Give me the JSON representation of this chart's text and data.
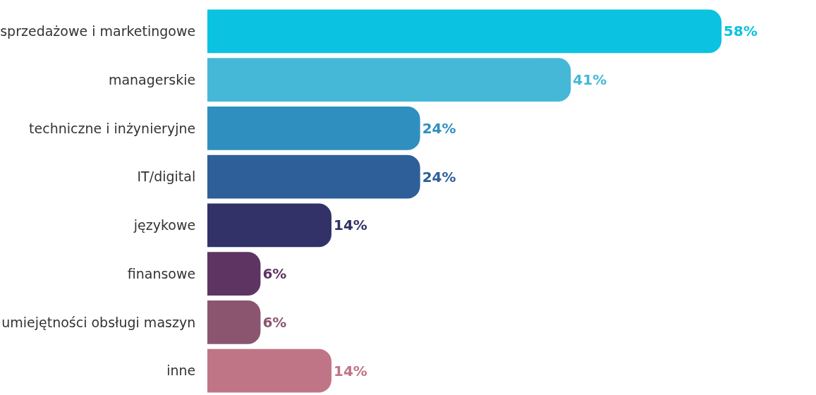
{
  "chart_data": {
    "type": "bar",
    "orientation": "horizontal",
    "categories": [
      "sprzedażowe i marketingowe",
      "managerskie",
      "techniczne i inżynieryjne",
      "IT/digital",
      "językowe",
      "finansowe",
      "umiejętności obsługi maszyn",
      "inne"
    ],
    "values": [
      58,
      41,
      24,
      24,
      14,
      6,
      6,
      14
    ],
    "value_labels": [
      "58%",
      "41%",
      "24%",
      "24%",
      "14%",
      "6%",
      "6%",
      "14%"
    ],
    "colors": [
      "#0bc3e0",
      "#45b8d8",
      "#2f8fbf",
      "#2e5f98",
      "#323268",
      "#5e3462",
      "#8b5570",
      "#c07587"
    ]
  }
}
